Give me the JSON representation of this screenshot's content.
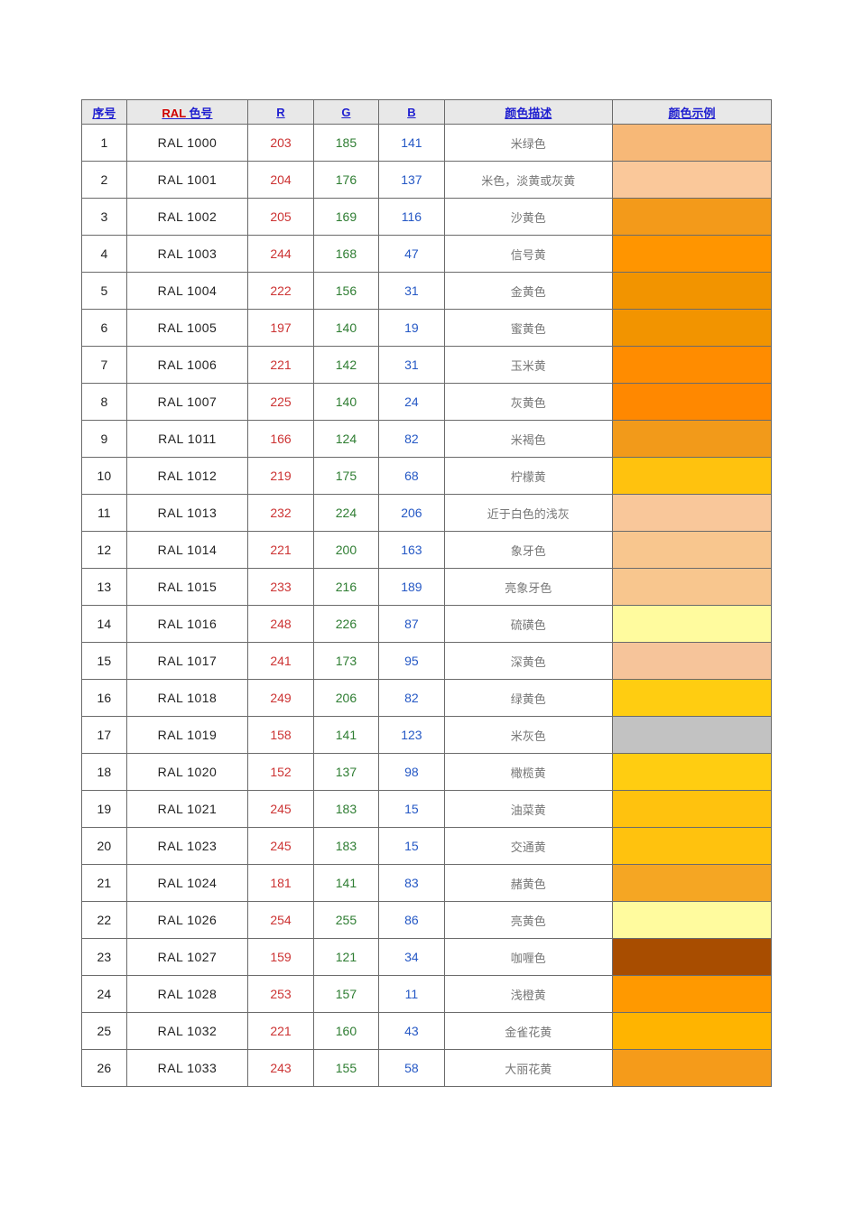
{
  "table": {
    "header": {
      "idx": "序号",
      "ral_prefix": "RAL",
      "ral_suffix": " 色号",
      "r": "R",
      "g": "G",
      "b": "B",
      "desc": "颜色描述",
      "swatch": "颜色示例"
    },
    "header_bg": "#e8e8e8",
    "header_color": "#2020d0",
    "border_color": "#6b6b6b",
    "r_color": "#cc3333",
    "g_color": "#2e7d32",
    "b_color": "#2558c5",
    "desc_color": "#777777",
    "rows": [
      {
        "idx": 1,
        "ral": "RAL 1000",
        "r": 203,
        "g": 185,
        "b": 141,
        "desc": "米绿色",
        "swatch": "#f7b877"
      },
      {
        "idx": 2,
        "ral": "RAL 1001",
        "r": 204,
        "g": 176,
        "b": 137,
        "desc": "米色，淡黄或灰黄",
        "swatch": "#fac89a"
      },
      {
        "idx": 3,
        "ral": "RAL 1002",
        "r": 205,
        "g": 169,
        "b": 116,
        "desc": "沙黄色",
        "swatch": "#f39a1a"
      },
      {
        "idx": 4,
        "ral": "RAL 1003",
        "r": 244,
        "g": 168,
        "b": 47,
        "desc": "信号黄",
        "swatch": "#ff9500"
      },
      {
        "idx": 5,
        "ral": "RAL 1004",
        "r": 222,
        "g": 156,
        "b": 31,
        "desc": "金黄色",
        "swatch": "#f29400"
      },
      {
        "idx": 6,
        "ral": "RAL 1005",
        "r": 197,
        "g": 140,
        "b": 19,
        "desc": "蜜黄色",
        "swatch": "#f29400"
      },
      {
        "idx": 7,
        "ral": "RAL 1006",
        "r": 221,
        "g": 142,
        "b": 31,
        "desc": "玉米黄",
        "swatch": "#ff8c00"
      },
      {
        "idx": 8,
        "ral": "RAL 1007",
        "r": 225,
        "g": 140,
        "b": 24,
        "desc": "灰黄色",
        "swatch": "#ff8800"
      },
      {
        "idx": 9,
        "ral": "RAL 1011",
        "r": 166,
        "g": 124,
        "b": 82,
        "desc": "米褐色",
        "swatch": "#f29a1a"
      },
      {
        "idx": 10,
        "ral": "RAL 1012",
        "r": 219,
        "g": 175,
        "b": 68,
        "desc": "柠檬黄",
        "swatch": "#ffc20e"
      },
      {
        "idx": 11,
        "ral": "RAL 1013",
        "r": 232,
        "g": 224,
        "b": 206,
        "desc": "近于白色的浅灰",
        "swatch": "#f9c79a"
      },
      {
        "idx": 12,
        "ral": "RAL 1014",
        "r": 221,
        "g": 200,
        "b": 163,
        "desc": "象牙色",
        "swatch": "#f8c68e"
      },
      {
        "idx": 13,
        "ral": "RAL 1015",
        "r": 233,
        "g": 216,
        "b": 189,
        "desc": "亮象牙色",
        "swatch": "#f8c68e"
      },
      {
        "idx": 14,
        "ral": "RAL 1016",
        "r": 248,
        "g": 226,
        "b": 87,
        "desc": "硫磺色",
        "swatch": "#fffb9e"
      },
      {
        "idx": 15,
        "ral": "RAL 1017",
        "r": 241,
        "g": 173,
        "b": 95,
        "desc": "深黄色",
        "swatch": "#f6c49a"
      },
      {
        "idx": 16,
        "ral": "RAL 1018",
        "r": 249,
        "g": 206,
        "b": 82,
        "desc": "绿黄色",
        "swatch": "#ffcd11"
      },
      {
        "idx": 17,
        "ral": "RAL 1019",
        "r": 158,
        "g": 141,
        "b": 123,
        "desc": "米灰色",
        "swatch": "#c2c2c2"
      },
      {
        "idx": 18,
        "ral": "RAL 1020",
        "r": 152,
        "g": 137,
        "b": 98,
        "desc": "橄榄黄",
        "swatch": "#ffcd11"
      },
      {
        "idx": 19,
        "ral": "RAL 1021",
        "r": 245,
        "g": 183,
        "b": 15,
        "desc": "油菜黄",
        "swatch": "#ffc20e"
      },
      {
        "idx": 20,
        "ral": "RAL 1023",
        "r": 245,
        "g": 183,
        "b": 15,
        "desc": "交通黄",
        "swatch": "#ffc20e"
      },
      {
        "idx": 21,
        "ral": "RAL 1024",
        "r": 181,
        "g": 141,
        "b": 83,
        "desc": "赭黄色",
        "swatch": "#f5a623"
      },
      {
        "idx": 22,
        "ral": "RAL 1026",
        "r": 254,
        "g": 255,
        "b": 86,
        "desc": "亮黄色",
        "swatch": "#fffb9e"
      },
      {
        "idx": 23,
        "ral": "RAL 1027",
        "r": 159,
        "g": 121,
        "b": 34,
        "desc": "咖喱色",
        "swatch": "#a84d00"
      },
      {
        "idx": 24,
        "ral": "RAL 1028",
        "r": 253,
        "g": 157,
        "b": 11,
        "desc": "浅橙黄",
        "swatch": "#ff9900"
      },
      {
        "idx": 25,
        "ral": "RAL 1032",
        "r": 221,
        "g": 160,
        "b": 43,
        "desc": "金雀花黄",
        "swatch": "#ffb400"
      },
      {
        "idx": 26,
        "ral": "RAL 1033",
        "r": 243,
        "g": 155,
        "b": 58,
        "desc": "大丽花黄",
        "swatch": "#f59b1a"
      }
    ]
  }
}
